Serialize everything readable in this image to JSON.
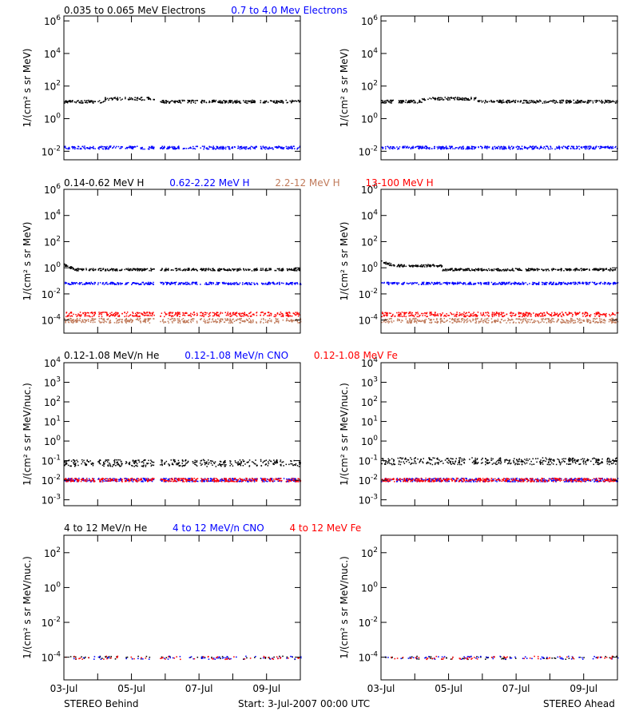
{
  "colors": {
    "black": "#000000",
    "blue": "#0000ff",
    "salmon": "#c07a5a",
    "red": "#ff0000"
  },
  "legends": [
    {
      "items": [
        {
          "text": "0.035 to 0.065 MeV Electrons",
          "color": "#000000"
        },
        {
          "text": "0.7 to 4.0 Mev Electrons",
          "color": "#0000ff"
        }
      ]
    },
    {
      "items": [
        {
          "text": "0.14-0.62 MeV H",
          "color": "#000000"
        },
        {
          "text": "0.62-2.22 MeV H",
          "color": "#0000ff"
        },
        {
          "text": "2.2-12 MeV H",
          "color": "#c07a5a"
        },
        {
          "text": "13-100 MeV H",
          "color": "#ff0000"
        }
      ]
    },
    {
      "items": [
        {
          "text": "0.12-1.08 MeV/n He",
          "color": "#000000"
        },
        {
          "text": "0.12-1.08 MeV/n CNO",
          "color": "#0000ff"
        },
        {
          "text": "0.12-1.08 MeV Fe",
          "color": "#ff0000"
        }
      ]
    },
    {
      "items": [
        {
          "text": "4 to 12 MeV/n He",
          "color": "#000000"
        },
        {
          "text": "4 to 12 MeV/n CNO",
          "color": "#0000ff"
        },
        {
          "text": "4 to 12 MeV Fe",
          "color": "#ff0000"
        }
      ]
    }
  ],
  "footer": {
    "left": "STEREO Behind",
    "center": "Start:  3-Jul-2007 00:00 UTC",
    "right": "STEREO Ahead"
  },
  "chart_data": [
    {
      "type": "scatter",
      "row": 0,
      "column": "STEREO Behind",
      "ylabel": "1/(cm² s sr MeV)",
      "yscale": "log",
      "ylim": [
        0.003,
        2000000
      ],
      "yticks": [
        {
          "v": 0.01,
          "e": "-2"
        },
        {
          "v": 1,
          "e": "0"
        },
        {
          "v": 100,
          "e": "2"
        },
        {
          "v": 10000,
          "e": "4"
        },
        {
          "v": 1000000,
          "e": "6"
        }
      ],
      "xlim": [
        "03-Jul",
        "10-Jul"
      ],
      "xticks": [],
      "series": [
        {
          "name": "0.035 to 0.065 MeV Electrons",
          "color": "#000000",
          "level": 12
        },
        {
          "name": "0.7 to 4.0 Mev Electrons",
          "color": "#0000ff",
          "level": 0.018
        }
      ]
    },
    {
      "type": "scatter",
      "row": 0,
      "column": "STEREO Ahead",
      "ylabel": "1/(cm² s sr MeV)",
      "yscale": "log",
      "ylim": [
        0.003,
        2000000
      ],
      "yticks": [
        {
          "v": 0.01,
          "e": "-2"
        },
        {
          "v": 1,
          "e": "0"
        },
        {
          "v": 100,
          "e": "2"
        },
        {
          "v": 10000,
          "e": "4"
        },
        {
          "v": 1000000,
          "e": "6"
        }
      ],
      "xlim": [
        "03-Jul",
        "10-Jul"
      ],
      "xticks": [],
      "series": [
        {
          "name": "0.035 to 0.065 MeV Electrons",
          "color": "#000000",
          "level": 12
        },
        {
          "name": "0.7 to 4.0 Mev Electrons",
          "color": "#0000ff",
          "level": 0.018
        }
      ]
    },
    {
      "type": "scatter",
      "row": 1,
      "column": "STEREO Behind",
      "ylabel": "1/(cm² s sr MeV)",
      "yscale": "log",
      "ylim": [
        1e-05,
        1000000
      ],
      "yticks": [
        {
          "v": 0.0001,
          "e": "-4"
        },
        {
          "v": 0.01,
          "e": "-2"
        },
        {
          "v": 1,
          "e": "0"
        },
        {
          "v": 100,
          "e": "2"
        },
        {
          "v": 10000,
          "e": "4"
        },
        {
          "v": 1000000,
          "e": "6"
        }
      ],
      "xlim": [
        "03-Jul",
        "10-Jul"
      ],
      "xticks": [],
      "series": [
        {
          "name": "0.14-0.62 MeV H",
          "color": "#000000",
          "level": 0.8
        },
        {
          "name": "0.62-2.22 MeV H",
          "color": "#0000ff",
          "level": 0.07
        },
        {
          "name": "2.2-12 MeV H",
          "color": "#c07a5a",
          "level": 0.0001
        },
        {
          "name": "13-100 MeV H",
          "color": "#ff0000",
          "level": 0.0003
        }
      ]
    },
    {
      "type": "scatter",
      "row": 1,
      "column": "STEREO Ahead",
      "ylabel": "1/(cm² s sr MeV)",
      "yscale": "log",
      "ylim": [
        1e-05,
        1000000
      ],
      "yticks": [
        {
          "v": 0.0001,
          "e": "-4"
        },
        {
          "v": 0.01,
          "e": "-2"
        },
        {
          "v": 1,
          "e": "0"
        },
        {
          "v": 100,
          "e": "2"
        },
        {
          "v": 10000,
          "e": "4"
        },
        {
          "v": 1000000,
          "e": "6"
        }
      ],
      "xlim": [
        "03-Jul",
        "10-Jul"
      ],
      "xticks": [],
      "series": [
        {
          "name": "0.14-0.62 MeV H",
          "color": "#000000",
          "level": 0.8
        },
        {
          "name": "0.62-2.22 MeV H",
          "color": "#0000ff",
          "level": 0.07
        },
        {
          "name": "2.2-12 MeV H",
          "color": "#c07a5a",
          "level": 0.0001
        },
        {
          "name": "13-100 MeV H",
          "color": "#ff0000",
          "level": 0.0003
        }
      ]
    },
    {
      "type": "scatter",
      "row": 2,
      "column": "STEREO Behind",
      "ylabel": "1/(cm² s sr MeV/nuc.)",
      "yscale": "log",
      "ylim": [
        0.0005,
        10000
      ],
      "yticks": [
        {
          "v": 0.001,
          "e": "-3"
        },
        {
          "v": 0.01,
          "e": "-2"
        },
        {
          "v": 0.1,
          "e": "-1"
        },
        {
          "v": 1,
          "e": "0"
        },
        {
          "v": 10,
          "e": "1"
        },
        {
          "v": 100,
          "e": "2"
        },
        {
          "v": 1000,
          "e": "3"
        },
        {
          "v": 10000,
          "e": "4"
        }
      ],
      "xlim": [
        "03-Jul",
        "10-Jul"
      ],
      "xticks": [],
      "series": [
        {
          "name": "0.12-1.08 MeV/n He",
          "color": "#000000",
          "level": 0.08
        },
        {
          "name": "0.12-1.08 MeV/n CNO",
          "color": "#0000ff",
          "level": 0.011
        },
        {
          "name": "0.12-1.08 MeV Fe",
          "color": "#ff0000",
          "level": 0.011
        }
      ]
    },
    {
      "type": "scatter",
      "row": 2,
      "column": "STEREO Ahead",
      "ylabel": "1/(cm² s sr MeV/nuc.)",
      "yscale": "log",
      "ylim": [
        0.0005,
        10000
      ],
      "yticks": [
        {
          "v": 0.001,
          "e": "-3"
        },
        {
          "v": 0.01,
          "e": "-2"
        },
        {
          "v": 0.1,
          "e": "-1"
        },
        {
          "v": 1,
          "e": "0"
        },
        {
          "v": 10,
          "e": "1"
        },
        {
          "v": 100,
          "e": "2"
        },
        {
          "v": 1000,
          "e": "3"
        },
        {
          "v": 10000,
          "e": "4"
        }
      ],
      "xlim": [
        "03-Jul",
        "10-Jul"
      ],
      "xticks": [],
      "series": [
        {
          "name": "0.12-1.08 MeV/n He",
          "color": "#000000",
          "level": 0.1
        },
        {
          "name": "0.12-1.08 MeV/n CNO",
          "color": "#0000ff",
          "level": 0.011
        },
        {
          "name": "0.12-1.08 MeV Fe",
          "color": "#ff0000",
          "level": 0.011
        }
      ]
    },
    {
      "type": "scatter",
      "row": 3,
      "column": "STEREO Behind",
      "ylabel": "1/(cm² s sr MeV/nuc.)",
      "yscale": "log",
      "ylim": [
        5e-06,
        1000
      ],
      "yticks": [
        {
          "v": 0.0001,
          "e": "-4"
        },
        {
          "v": 0.01,
          "e": "-2"
        },
        {
          "v": 1,
          "e": "0"
        },
        {
          "v": 100,
          "e": "2"
        }
      ],
      "xlim": [
        "03-Jul",
        "10-Jul"
      ],
      "xticks": [
        "03-Jul",
        "05-Jul",
        "07-Jul",
        "09-Jul"
      ],
      "series": [
        {
          "name": "4 to 12 MeV/n He",
          "color": "#000000",
          "level": 0.0001
        },
        {
          "name": "4 to 12 MeV/n CNO",
          "color": "#0000ff",
          "level": 0.0001
        },
        {
          "name": "4 to 12 MeV Fe",
          "color": "#ff0000",
          "level": 0.0001
        }
      ]
    },
    {
      "type": "scatter",
      "row": 3,
      "column": "STEREO Ahead",
      "ylabel": "1/(cm² s sr MeV/nuc.)",
      "yscale": "log",
      "ylim": [
        5e-06,
        1000
      ],
      "yticks": [
        {
          "v": 0.0001,
          "e": "-4"
        },
        {
          "v": 0.01,
          "e": "-2"
        },
        {
          "v": 1,
          "e": "0"
        },
        {
          "v": 100,
          "e": "2"
        }
      ],
      "xlim": [
        "03-Jul",
        "10-Jul"
      ],
      "xticks": [
        "03-Jul",
        "05-Jul",
        "07-Jul",
        "09-Jul"
      ],
      "series": [
        {
          "name": "4 to 12 MeV/n He",
          "color": "#000000",
          "level": 0.0001
        },
        {
          "name": "4 to 12 MeV/n CNO",
          "color": "#0000ff",
          "level": 0.0001
        },
        {
          "name": "4 to 12 MeV Fe",
          "color": "#ff0000",
          "level": 0.0001
        }
      ]
    }
  ]
}
